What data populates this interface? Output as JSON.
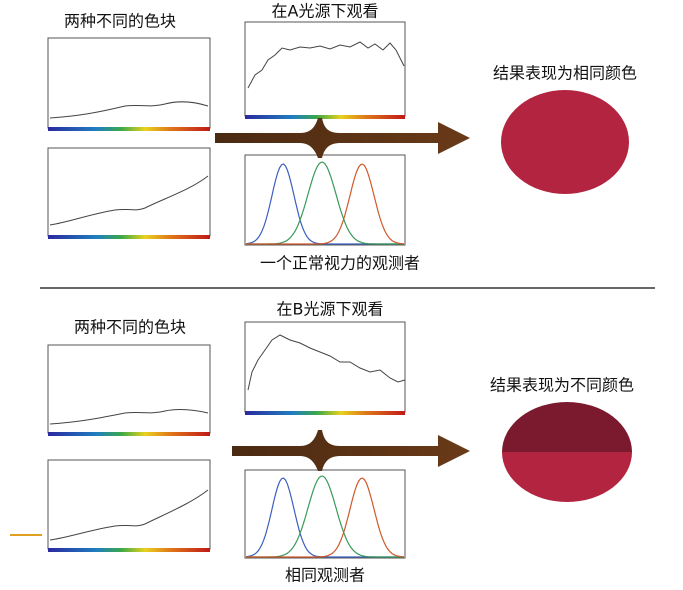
{
  "panels": [
    {
      "samples_label": "两种不同的色块",
      "illuminant_label": "在A光源下观看",
      "observer_label": "一个正常视力的观测者",
      "result_label": "结果表现为相同颜色"
    },
    {
      "samples_label": "两种不同的色块",
      "illuminant_label": "在B光源下观看",
      "observer_label": "相同观测者",
      "result_label": "结果表现为不同颜色"
    }
  ]
}
